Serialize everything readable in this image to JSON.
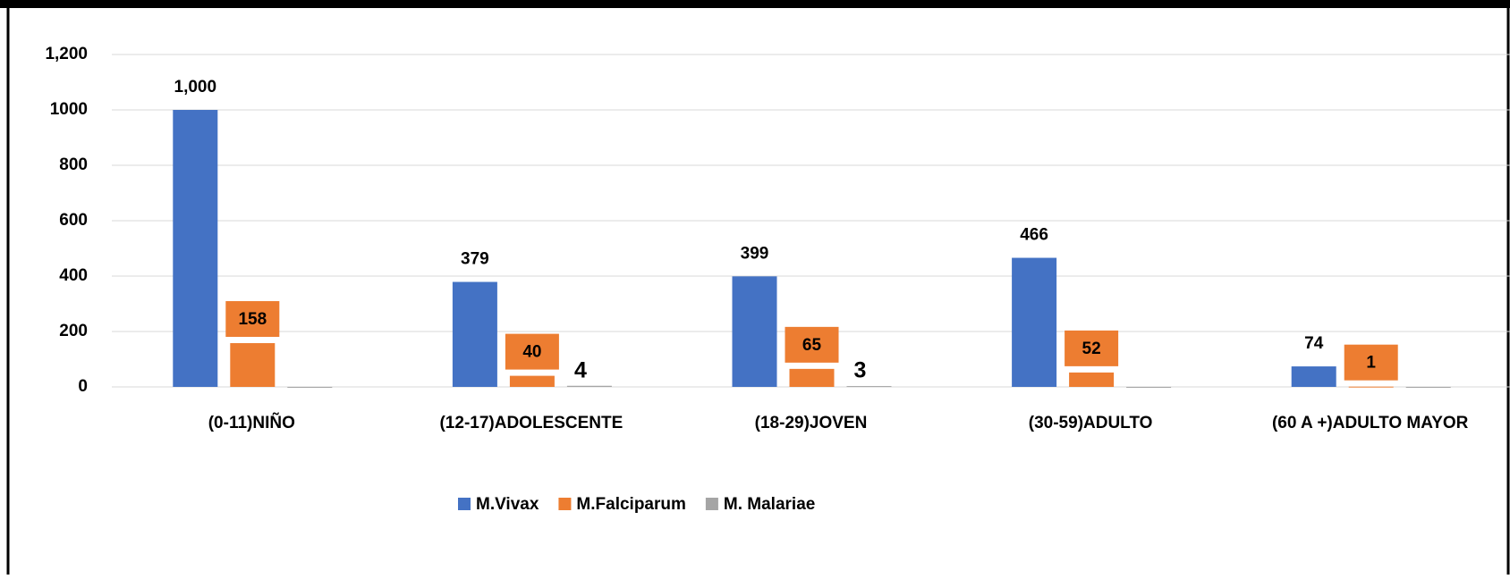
{
  "chart_data": {
    "type": "bar",
    "categories": [
      "(0-11)NIÑO",
      "(12-17)ADOLESCENTE",
      "(18-29)JOVEN",
      "(30-59)ADULTO",
      "(60 A +)ADULTO MAYOR"
    ],
    "series": [
      {
        "name": "M.Vivax",
        "color": "#4472c4",
        "values": [
          1000,
          379,
          399,
          466,
          74
        ],
        "value_labels": [
          "1,000",
          "379",
          "399",
          "466",
          "74"
        ]
      },
      {
        "name": "M.Falciparum",
        "color": "#ed7d31",
        "values": [
          158,
          40,
          65,
          52,
          1
        ]
      },
      {
        "name": "M. Malariae",
        "color": "#a5a5a5",
        "values": [
          0,
          4,
          3,
          0,
          0
        ]
      }
    ],
    "ylim": [
      0,
      1200
    ],
    "yticks": [
      0,
      200,
      400,
      600,
      800,
      1000,
      {
        "value": 1200,
        "label": "1,200"
      }
    ],
    "grid": true,
    "legend": "bottom"
  }
}
